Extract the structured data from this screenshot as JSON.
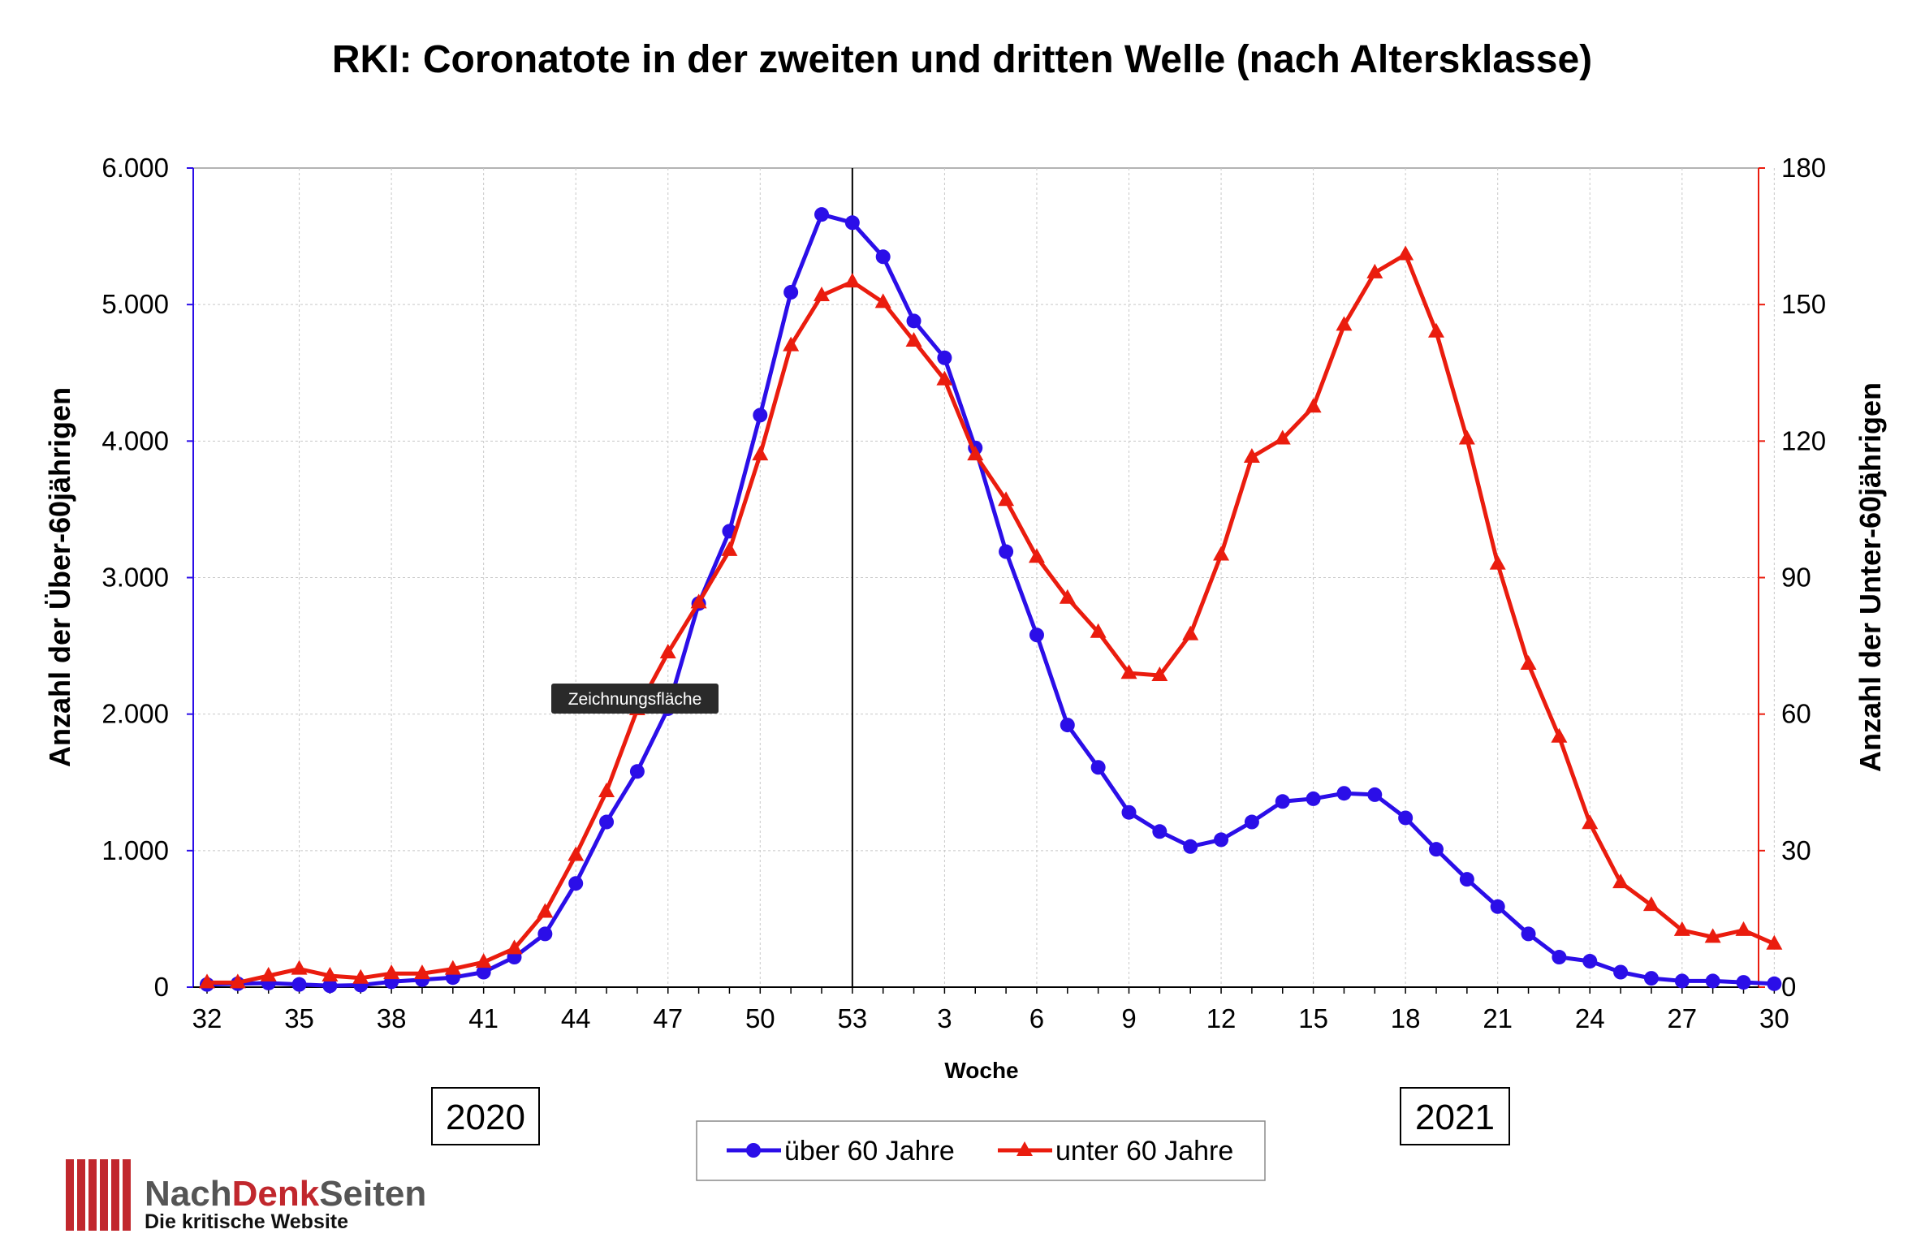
{
  "chart_data": {
    "type": "line",
    "title": "RKI: Coronatote in der zweiten und dritten Welle (nach Altersklasse)",
    "xlabel": "Woche",
    "ylabel_left": "Anzahl der Über-60jährigen",
    "ylabel_right": "Anzahl der Unter-60jährigen",
    "ylim_left": [
      0,
      6000
    ],
    "ylim_right": [
      0,
      180
    ],
    "yticks_left": [
      "0",
      "1.000",
      "2.000",
      "3.000",
      "4.000",
      "5.000",
      "6.000"
    ],
    "yticks_right": [
      "0",
      "30",
      "60",
      "90",
      "120",
      "150",
      "180"
    ],
    "x_tick_labels": [
      "32",
      "35",
      "38",
      "41",
      "44",
      "47",
      "50",
      "53",
      "3",
      "6",
      "9",
      "12",
      "15",
      "18",
      "21",
      "24",
      "27",
      "30"
    ],
    "year_labels": [
      "2020",
      "2021"
    ],
    "grid": true,
    "legend_position": "bottom-center",
    "x": [
      "32",
      "33",
      "34",
      "35",
      "36",
      "37",
      "38",
      "39",
      "40",
      "41",
      "42",
      "43",
      "44",
      "45",
      "46",
      "47",
      "48",
      "49",
      "50",
      "51",
      "52",
      "53",
      "1",
      "2",
      "3",
      "4",
      "5",
      "6",
      "7",
      "8",
      "9",
      "10",
      "11",
      "12",
      "13",
      "14",
      "15",
      "16",
      "17",
      "18",
      "19",
      "20",
      "21",
      "22",
      "23",
      "24",
      "25",
      "26",
      "27",
      "28",
      "29",
      "30"
    ],
    "series": [
      {
        "name": "über 60 Jahre",
        "axis": "left",
        "color": "#2b0ee8",
        "marker": "circle",
        "values": [
          20,
          25,
          30,
          20,
          10,
          15,
          40,
          55,
          70,
          110,
          220,
          390,
          760,
          1210,
          1580,
          2040,
          2810,
          3340,
          4190,
          5090,
          5660,
          5600,
          5350,
          4880,
          4610,
          3950,
          3190,
          2580,
          1920,
          1610,
          1280,
          1140,
          1030,
          1080,
          1210,
          1360,
          1380,
          1420,
          1410,
          1240,
          1010,
          790,
          590,
          390,
          220,
          190,
          110,
          65,
          45,
          45,
          35,
          25
        ]
      },
      {
        "name": "unter 60 Jahre",
        "axis": "right",
        "color": "#ea1c0e",
        "marker": "triangle",
        "values": [
          1,
          1,
          2.5,
          4,
          2.5,
          2,
          3,
          3,
          4,
          5.5,
          8.5,
          16.5,
          29,
          43,
          61,
          73.5,
          84.5,
          96,
          117,
          141,
          152,
          155,
          150.5,
          142,
          133.5,
          117,
          107,
          94.5,
          85.5,
          78,
          69,
          68.5,
          77.5,
          95,
          116.5,
          120.5,
          127.5,
          145.5,
          157,
          161,
          144,
          120.5,
          93,
          71,
          55,
          36,
          23,
          18,
          12.5,
          11,
          12.5,
          9.5
        ]
      }
    ]
  },
  "tooltip": {
    "text": "Zeichnungsfläche"
  },
  "logo": {
    "name_part1": "Nach",
    "name_part2": "Denk",
    "name_part3": "Seiten",
    "tagline": "Die kritische Website"
  }
}
